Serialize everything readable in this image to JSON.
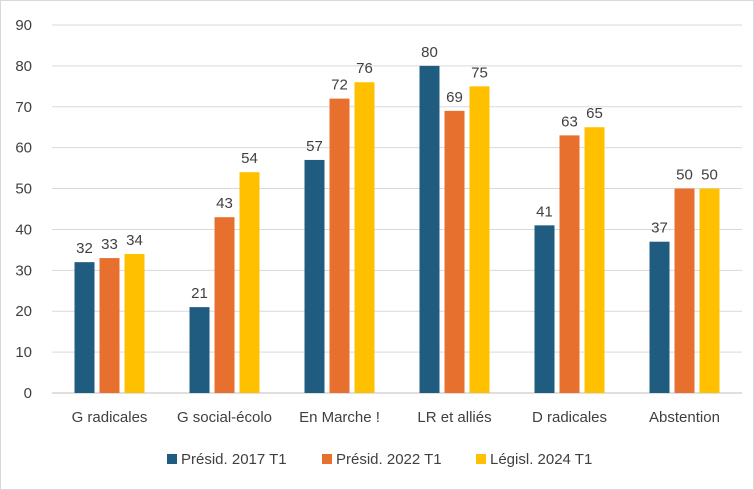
{
  "chart_data": {
    "type": "bar",
    "title": "",
    "xlabel": "",
    "ylabel": "",
    "ylim": [
      0,
      90
    ],
    "y_ticks": [
      0,
      10,
      20,
      30,
      40,
      50,
      60,
      70,
      80,
      90
    ],
    "grid": true,
    "legend_position": "bottom",
    "categories": [
      "G radicales",
      "G social-écolo",
      "En Marche !",
      "LR et alliés",
      "D radicales",
      "Abstention"
    ],
    "series": [
      {
        "name": "Présid. 2017 T1",
        "color": "#1f5c7f",
        "values": [
          32,
          21,
          57,
          80,
          41,
          37
        ]
      },
      {
        "name": "Présid. 2022 T1",
        "color": "#e8702f",
        "values": [
          33,
          43,
          72,
          69,
          63,
          50
        ]
      },
      {
        "name": "Législ. 2024 T1",
        "color": "#ffc000",
        "values": [
          34,
          54,
          76,
          75,
          65,
          50
        ]
      }
    ],
    "data_labels": true
  }
}
